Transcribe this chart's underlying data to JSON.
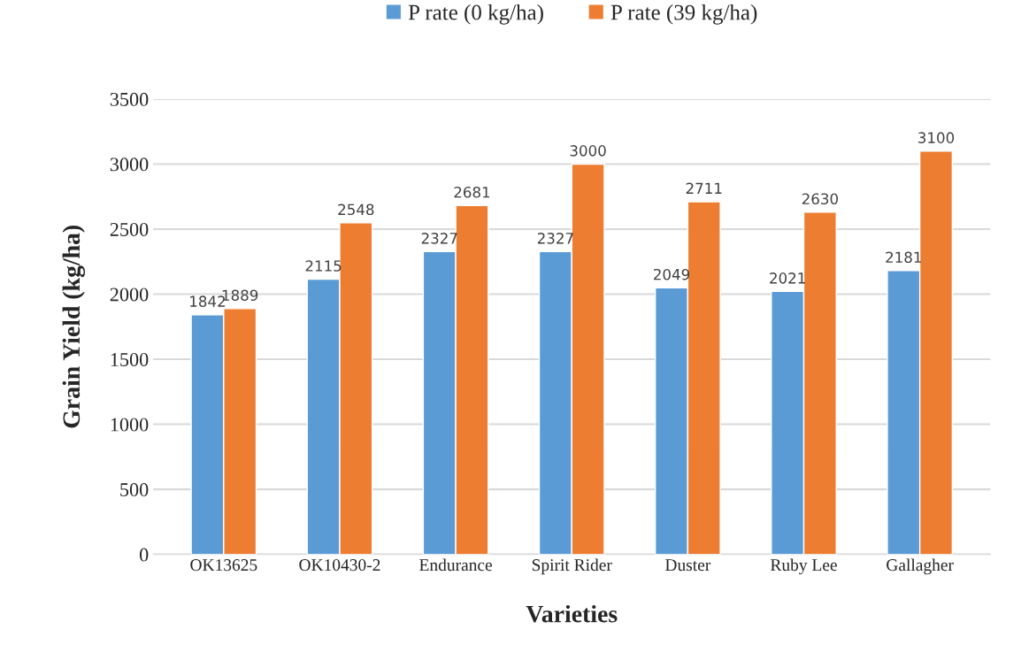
{
  "chart_data": {
    "type": "bar",
    "xlabel": "Varieties",
    "ylabel": "Grain Yield (kg/ha)",
    "categories": [
      "OK13625",
      "OK10430-2",
      "Endurance",
      "Spirit Rider",
      "Duster",
      "Ruby Lee",
      "Gallagher"
    ],
    "series": [
      {
        "name": "P rate (0 kg/ha)",
        "color": "#5b9bd5",
        "values": [
          1842,
          2115,
          2327,
          2327,
          2049,
          2021,
          2181
        ]
      },
      {
        "name": "P rate (39 kg/ha)",
        "color": "#ed7d31",
        "values": [
          1889,
          2548,
          2681,
          3000,
          2711,
          2630,
          3100
        ]
      }
    ],
    "ylim": [
      0,
      3500
    ],
    "yticks": [
      0,
      500,
      1000,
      1500,
      2000,
      2500,
      3000,
      3500
    ],
    "grid": "y",
    "legend": "top",
    "data_labels": true
  }
}
